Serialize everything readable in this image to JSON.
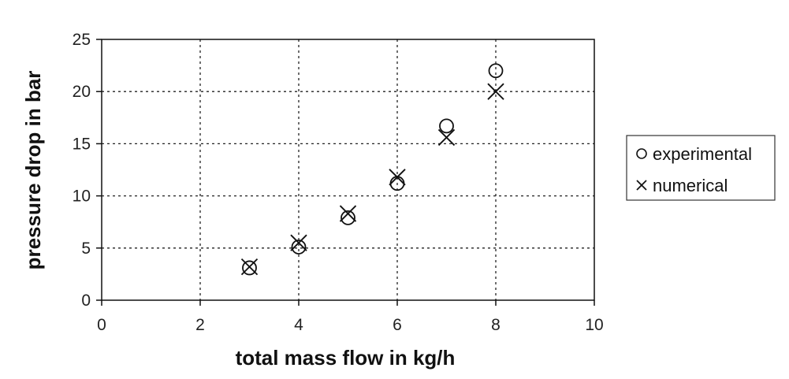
{
  "chart_data": {
    "type": "scatter",
    "xlabel": "total mass flow in kg/h",
    "ylabel": "pressure drop in bar",
    "xlim": [
      0,
      10
    ],
    "ylim": [
      0,
      25
    ],
    "x_ticks": [
      "0",
      "2",
      "4",
      "6",
      "8",
      "10"
    ],
    "y_ticks": [
      "0",
      "5",
      "10",
      "15",
      "20",
      "25"
    ],
    "grid": true,
    "grid_style": "dotted",
    "legend_placement": "right",
    "series": [
      {
        "name": "experimental",
        "marker": "circle",
        "points": [
          {
            "x": 3,
            "y": 3.1
          },
          {
            "x": 4,
            "y": 5.1
          },
          {
            "x": 5,
            "y": 7.9
          },
          {
            "x": 6,
            "y": 11.2
          },
          {
            "x": 7,
            "y": 16.7
          },
          {
            "x": 8,
            "y": 22.0
          }
        ]
      },
      {
        "name": "numerical",
        "marker": "cross",
        "points": [
          {
            "x": 3,
            "y": 3.2
          },
          {
            "x": 4,
            "y": 5.5
          },
          {
            "x": 5,
            "y": 8.3
          },
          {
            "x": 6,
            "y": 11.8
          },
          {
            "x": 7,
            "y": 15.6
          },
          {
            "x": 8,
            "y": 20.0
          }
        ]
      }
    ]
  }
}
